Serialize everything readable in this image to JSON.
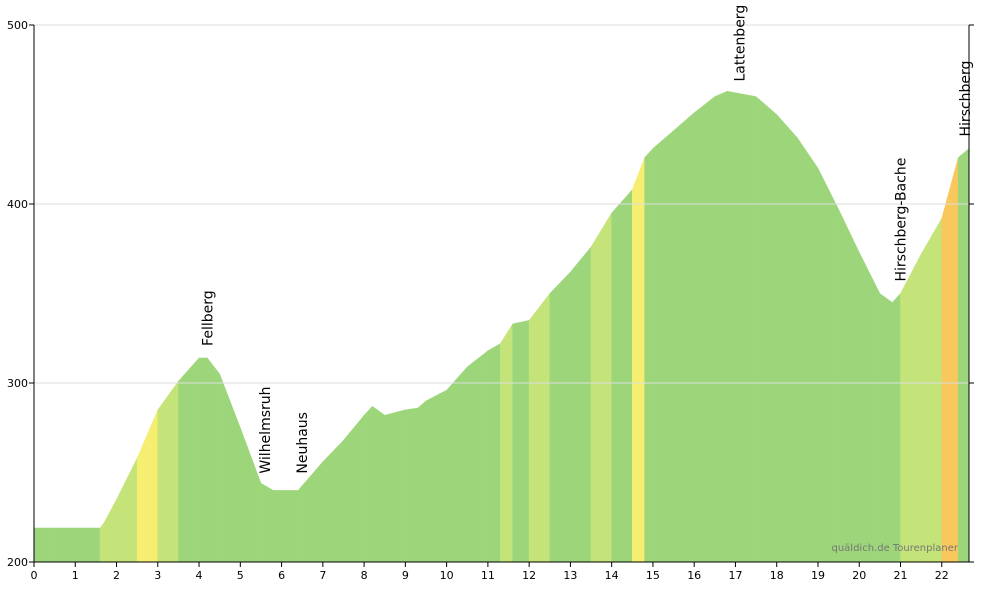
{
  "chart_data": {
    "type": "area",
    "x": [
      0,
      0.5,
      1,
      1.6,
      1.7,
      2,
      2.5,
      3,
      3.5,
      4,
      4.2,
      4.5,
      5,
      5.5,
      5.8,
      6.4,
      7,
      7.5,
      8,
      8.2,
      8.5,
      9,
      9.3,
      9.5,
      10,
      10.5,
      11,
      11.3,
      11.6,
      12,
      12.5,
      13,
      13.5,
      14,
      14.5,
      14.8,
      15,
      15.5,
      16,
      16.5,
      16.8,
      17.5,
      18,
      18.5,
      19,
      19.5,
      20,
      20.5,
      20.8,
      21,
      21.5,
      22,
      22.4,
      22.66
    ],
    "series": [
      {
        "values": [
          219,
          219,
          219,
          219,
          222,
          235,
          258,
          285,
          301,
          314,
          314,
          305,
          275,
          244,
          240,
          240,
          256,
          268,
          282,
          287,
          282,
          285,
          286,
          290,
          296,
          309,
          318,
          322,
          333,
          335,
          350,
          362,
          376,
          395,
          408,
          426,
          431,
          441,
          451,
          460,
          463,
          460,
          450,
          437,
          420,
          397,
          373,
          350,
          345,
          350,
          372,
          392,
          426,
          431
        ]
      }
    ],
    "xlim": [
      0,
      22.66
    ],
    "ylim": [
      200,
      500
    ],
    "xticks": [
      0,
      1,
      2,
      3,
      4,
      5,
      6,
      7,
      8,
      9,
      10,
      11,
      12,
      13,
      14,
      15,
      16,
      17,
      18,
      19,
      20,
      21,
      22
    ],
    "yticks": [
      200,
      300,
      400,
      500
    ],
    "grid": true,
    "annotations": [
      {
        "label": "Fellberg",
        "x": 4.2
      },
      {
        "label": "Wilhelmsruh",
        "x": 5.6
      },
      {
        "label": "Neuhaus",
        "x": 6.5
      },
      {
        "label": "Lattenberg",
        "x": 17.1
      },
      {
        "label": "Hirschberg-Bache",
        "x": 21.0
      },
      {
        "label": "Hirschberg",
        "x": 22.66
      }
    ],
    "watermark": "quäldich.de Tourenplaner"
  }
}
